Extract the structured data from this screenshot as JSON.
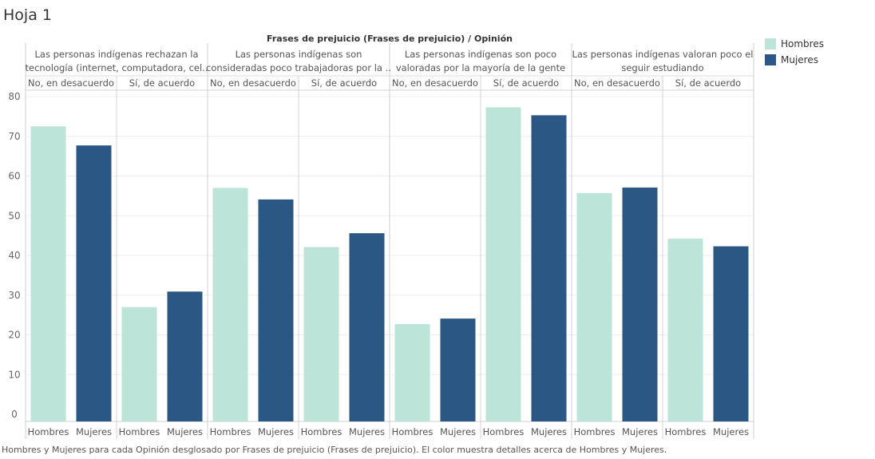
{
  "sheet": {
    "title": "Hoja 1"
  },
  "chart_data": {
    "type": "bar",
    "title": "Frases de prejuicio (Frases de prejuicio) / Opinión",
    "groups": [
      {
        "label_lines": [
          "Las personas indígenas rechazan la",
          "tecnología (internet, computadora, cel.."
        ],
        "subgroups": [
          {
            "label": "No, en desacuerdo",
            "values": [
              72.5,
              67.7
            ]
          },
          {
            "label": "Sí, de acuerdo",
            "values": [
              27.0,
              30.9
            ]
          }
        ]
      },
      {
        "label_lines": [
          "Las personas indígenas son",
          "consideradas poco trabajadoras por la .."
        ],
        "subgroups": [
          {
            "label": "No, en desacuerdo",
            "values": [
              57.0,
              54.1
            ]
          },
          {
            "label": "Sí, de acuerdo",
            "values": [
              42.1,
              45.6
            ]
          }
        ]
      },
      {
        "label_lines": [
          "Las personas indígenas son poco",
          "valoradas por la mayoría de la gente"
        ],
        "subgroups": [
          {
            "label": "No, en desacuerdo",
            "values": [
              22.7,
              24.1
            ]
          },
          {
            "label": "Sí, de acuerdo",
            "values": [
              77.3,
              75.3
            ]
          }
        ]
      },
      {
        "label_lines": [
          "Las personas indígenas valoran poco el",
          "seguir estudiando"
        ],
        "subgroups": [
          {
            "label": "No, en desacuerdo",
            "values": [
              55.7,
              57.1
            ]
          },
          {
            "label": "Sí, de acuerdo",
            "values": [
              44.2,
              42.3
            ]
          }
        ]
      }
    ],
    "series": [
      {
        "name": "Hombres",
        "color": "#bce4d9"
      },
      {
        "name": "Mujeres",
        "color": "#2a5783"
      }
    ],
    "y_ticks": [
      "0",
      "10",
      "20",
      "30",
      "40",
      "50",
      "60",
      "70",
      "80"
    ],
    "ylim": [
      0,
      80
    ],
    "grid": true,
    "legend_position": "top-right"
  },
  "legend": {
    "items": [
      {
        "label": "Hombres",
        "color": "#bce4d9"
      },
      {
        "label": "Mujeres",
        "color": "#2a5783"
      }
    ]
  },
  "caption": "Hombres y Mujeres para cada Opinión desglosado por Frases de prejuicio (Frases de prejuicio).  El color muestra detalles acerca de Hombres y Mujeres."
}
